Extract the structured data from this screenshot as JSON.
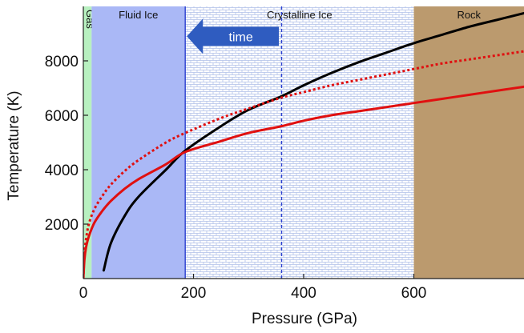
{
  "chart_data": {
    "type": "line",
    "xlabel": "Pressure (GPa)",
    "ylabel": "Temperature (K)",
    "xlim": [
      0,
      800
    ],
    "ylim": [
      0,
      10000
    ],
    "x_ticks": [
      0,
      200,
      400,
      600
    ],
    "y_ticks": [
      2000,
      4000,
      6000,
      8000
    ],
    "regions": [
      {
        "label": "Gas",
        "x0": 0,
        "x1": 15,
        "color": "#b8f0c0",
        "pattern": "none",
        "label_orientation": "vertical"
      },
      {
        "label": "Fluid Ice",
        "x0": 15,
        "x1": 185,
        "color": "#aab8f6",
        "pattern": "none",
        "label_orientation": "horizontal"
      },
      {
        "label": "Crystalline Ice",
        "x0": 185,
        "x1": 600,
        "color": "#ffffff",
        "pattern": "brick",
        "label_orientation": "horizontal"
      },
      {
        "label": "Rock",
        "x0": 600,
        "x1": 800,
        "color": "#bb9a6e",
        "pattern": "none",
        "label_orientation": "horizontal"
      }
    ],
    "vlines": [
      {
        "x": 185,
        "style": "solid",
        "color": "#2a3fd0"
      },
      {
        "x": 360,
        "style": "dashed",
        "color": "#2a3fd0"
      }
    ],
    "annotations": [
      {
        "text": "time",
        "type": "arrow",
        "direction": "left",
        "x_from": 355,
        "x_to": 185,
        "y": 8900,
        "color": "#2f5cc0"
      }
    ],
    "series": [
      {
        "color": "#000000",
        "style": "solid",
        "x": [
          37,
          50,
          75,
          100,
          150,
          185,
          250,
          300,
          360,
          400,
          450,
          500,
          550,
          600,
          650,
          700,
          750,
          800
        ],
        "y": [
          300,
          1300,
          2300,
          3000,
          4000,
          4700,
          5600,
          6200,
          6700,
          7100,
          7550,
          7950,
          8300,
          8650,
          8950,
          9250,
          9500,
          9750
        ]
      },
      {
        "color": "#e01010",
        "style": "dashed",
        "x": [
          0,
          2,
          5,
          10,
          20,
          35,
          50,
          75,
          100,
          150,
          185,
          250,
          300,
          360,
          400,
          450,
          500,
          550,
          600,
          650,
          700,
          750,
          800
        ],
        "y": [
          0,
          900,
          1450,
          2000,
          2550,
          3050,
          3450,
          3950,
          4350,
          5000,
          5350,
          5900,
          6250,
          6650,
          6850,
          7100,
          7300,
          7500,
          7700,
          7900,
          8050,
          8200,
          8350
        ]
      },
      {
        "color": "#e01010",
        "style": "solid",
        "x": [
          0,
          2,
          5,
          10,
          20,
          35,
          50,
          75,
          100,
          150,
          185,
          250,
          300,
          360,
          400,
          450,
          500,
          550,
          600,
          650,
          700,
          750,
          800
        ],
        "y": [
          0,
          700,
          1150,
          1550,
          2050,
          2500,
          2850,
          3300,
          3650,
          4200,
          4650,
          5050,
          5350,
          5600,
          5800,
          6000,
          6150,
          6300,
          6450,
          6600,
          6750,
          6900,
          7050
        ]
      }
    ]
  }
}
